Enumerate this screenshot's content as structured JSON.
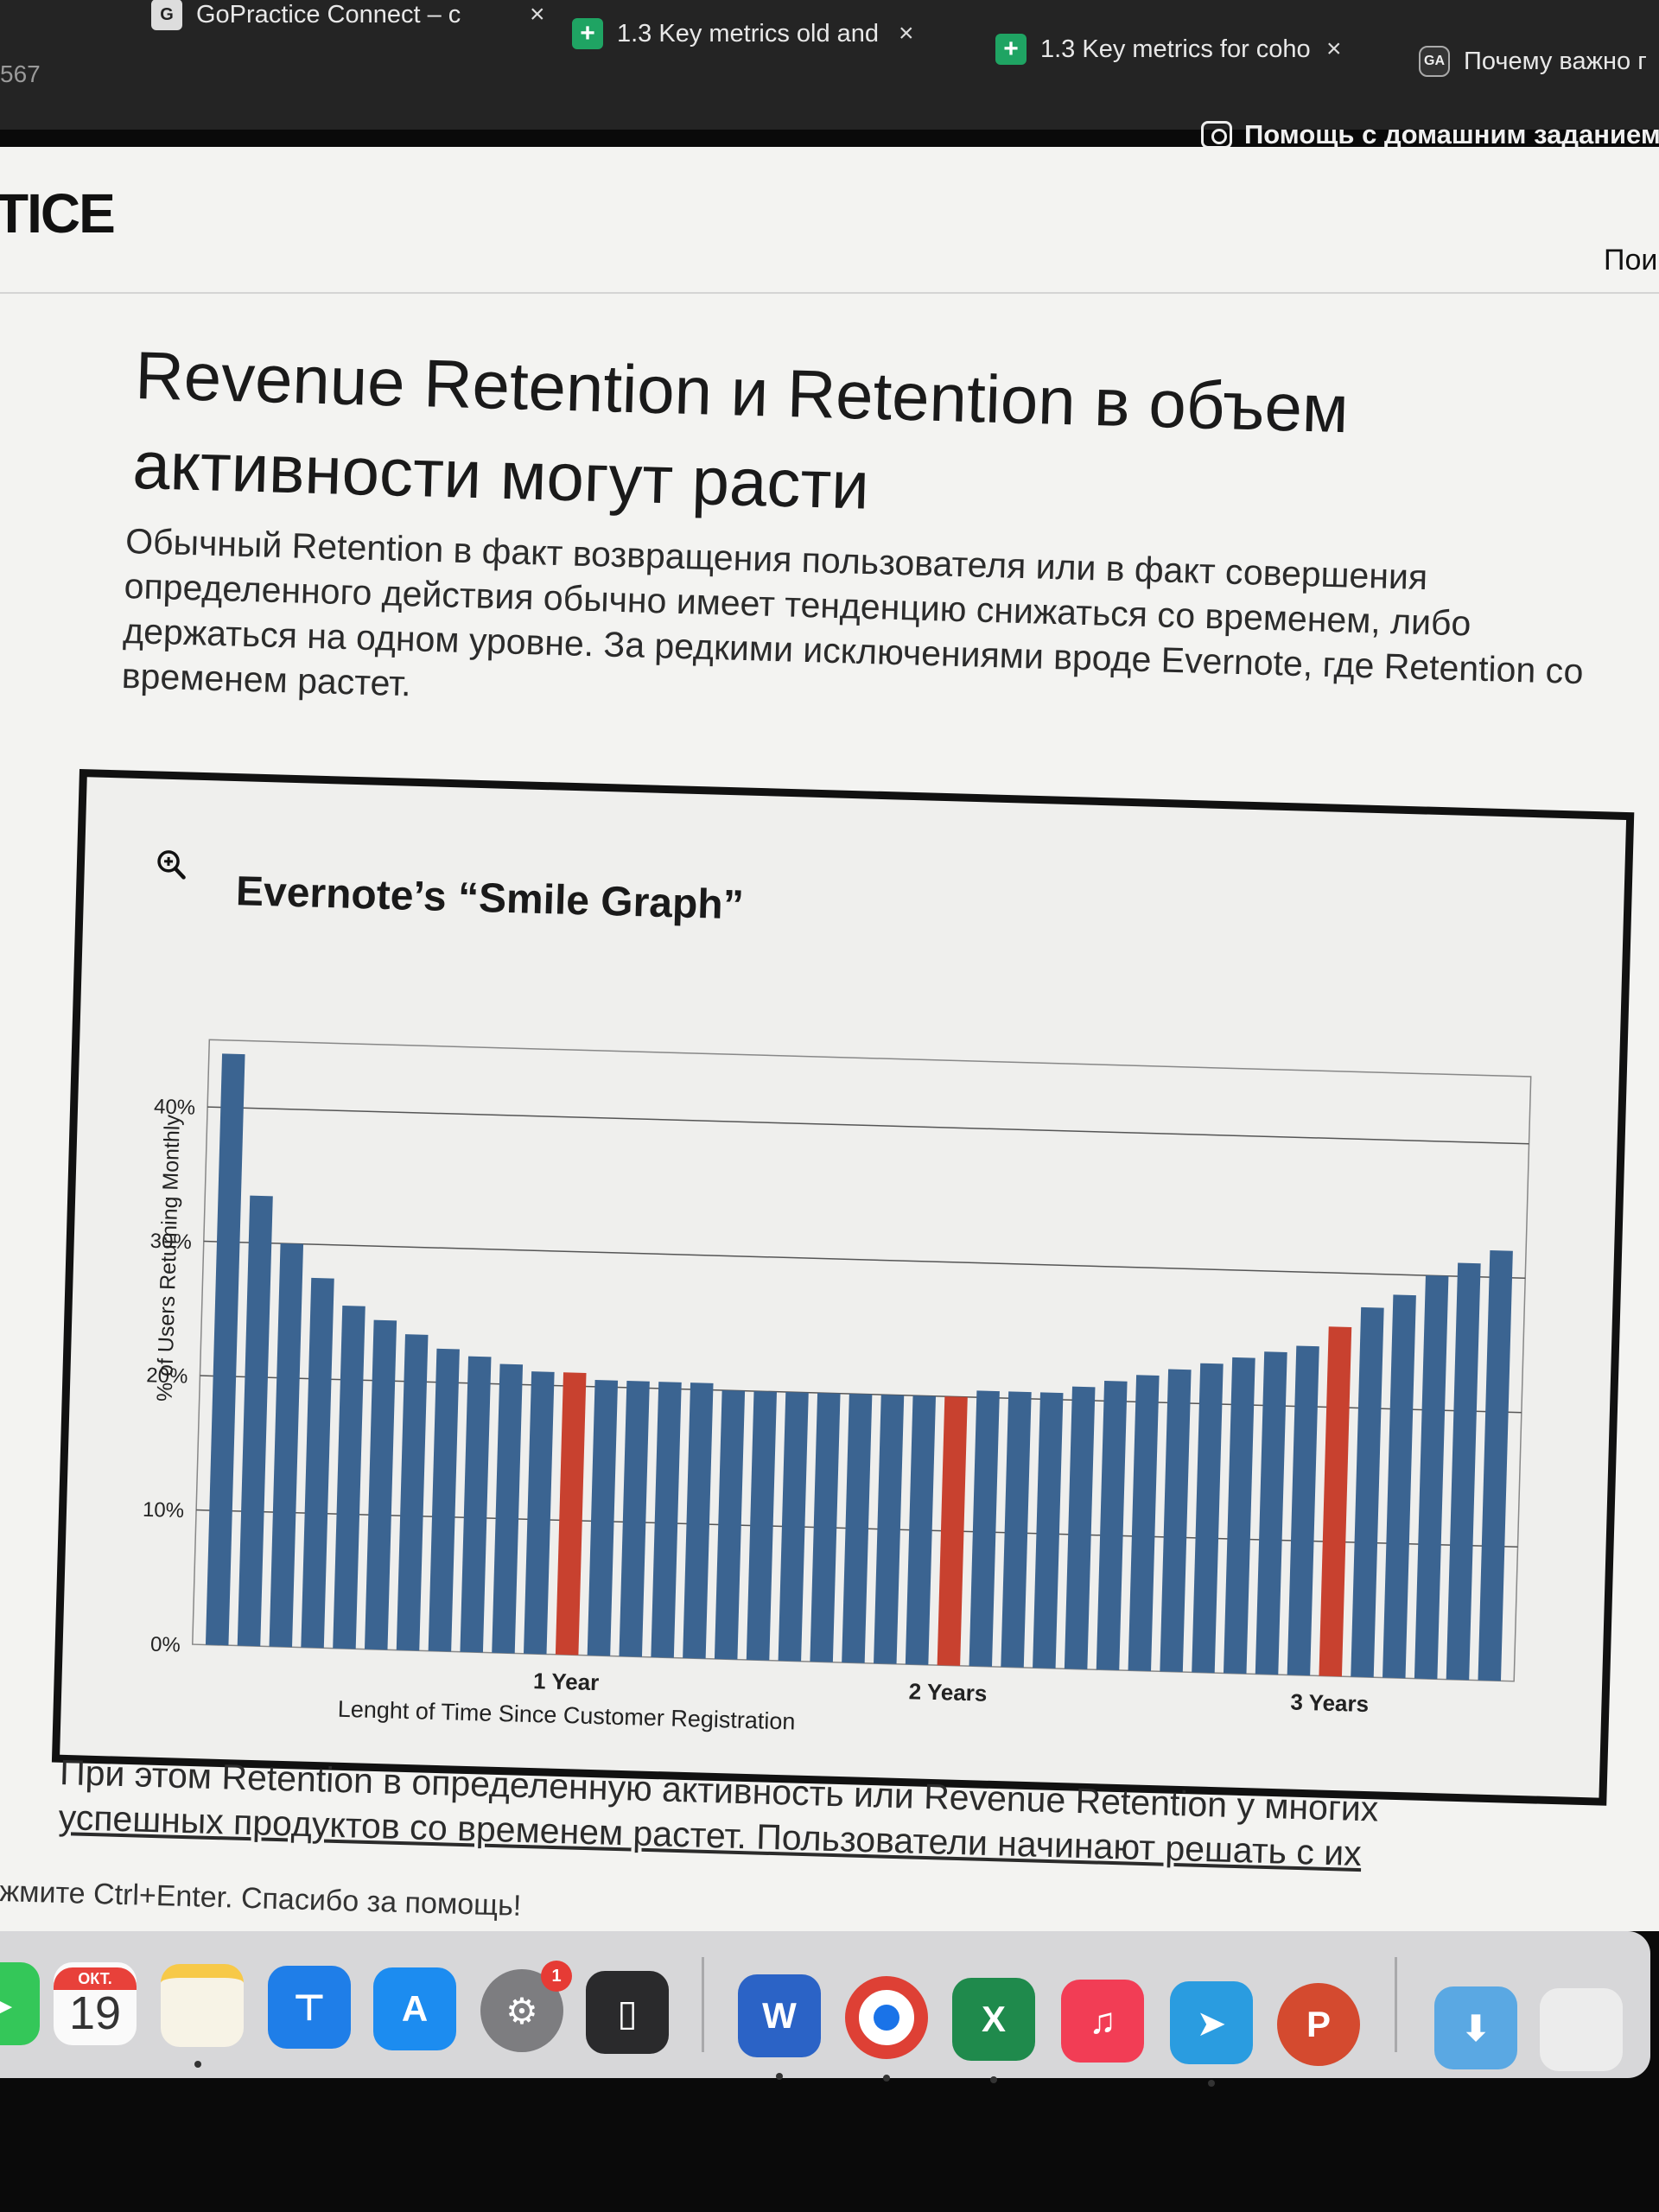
{
  "browser": {
    "address_fragment": "567",
    "tabs": [
      {
        "label": "GoPractice Connect – c",
        "icon": "goPractice-icon"
      },
      {
        "label": "1.3 Key metrics old and",
        "icon": "sheets-icon"
      },
      {
        "label": "1.3 Key metrics for coho",
        "icon": "sheets-icon"
      },
      {
        "label": "Почему важно г",
        "icon": "ga-icon"
      }
    ],
    "close_glyph": "×",
    "help_button": "Помощь с домашним заданием"
  },
  "site": {
    "logo": "TICE",
    "nav_search": "Пои"
  },
  "article": {
    "title": "Revenue Retention и Retention в объем активности могут расти",
    "intro": "Обычный Retention в факт возвращения пользователя или в факт совершения определенного действия обычно имеет тенденцию снижаться со временем, либо держаться на одном уровне. За редкими исключениями вроде Evernote, где Retention со временем растет.",
    "after_line1": "При этом Retention в определенную активность или Revenue Retention у многих",
    "after_line2": "успешных продуктов со временем растет. Пользователи начинают решать с их",
    "footer_note": "жмите Ctrl+Enter. Спасибо за помощь!"
  },
  "chart_data": {
    "type": "bar",
    "title": "Evernote’s “Smile Graph”",
    "xlabel": "Lenght of Time Since Customer Registration",
    "ylabel": "% of Users Returning Monthly",
    "yticks": [
      "0%",
      "10%",
      "20%",
      "30%",
      "40%"
    ],
    "ylim": [
      0,
      45
    ],
    "grid": true,
    "x_tick_labels": [
      {
        "label": "1 Year",
        "index": 11
      },
      {
        "label": "2 Years",
        "index": 23
      },
      {
        "label": "3 Years",
        "index": 35
      }
    ],
    "highlight_indices": [
      11,
      23,
      35
    ],
    "colors": {
      "normal": "#3b6491",
      "highlight": "#c8412f"
    },
    "values": [
      44,
      33.5,
      30,
      27.5,
      25.5,
      24.5,
      23.5,
      22.5,
      22,
      21.5,
      21,
      21,
      20.5,
      20.5,
      20.5,
      20.5,
      20,
      20,
      20,
      20,
      20,
      20,
      20,
      20,
      20.5,
      20.5,
      20.5,
      21,
      21.5,
      22,
      22.5,
      23,
      23.5,
      24,
      24.5,
      26,
      27.5,
      28.5,
      30,
      31,
      32
    ]
  },
  "dock": {
    "calendar_month": "ОКТ.",
    "calendar_day": "19",
    "badge_count": "1",
    "apps": [
      "facetime-icon",
      "calendar-icon",
      "notes-icon",
      "keynote-icon",
      "app-store-icon",
      "system-settings-icon",
      "iphone-mirroring-icon",
      "word-icon",
      "chrome-icon",
      "excel-icon",
      "music-icon",
      "telegram-icon",
      "powerpoint-icon",
      "downloads-folder-icon",
      "document-thumbnail-icon"
    ]
  }
}
